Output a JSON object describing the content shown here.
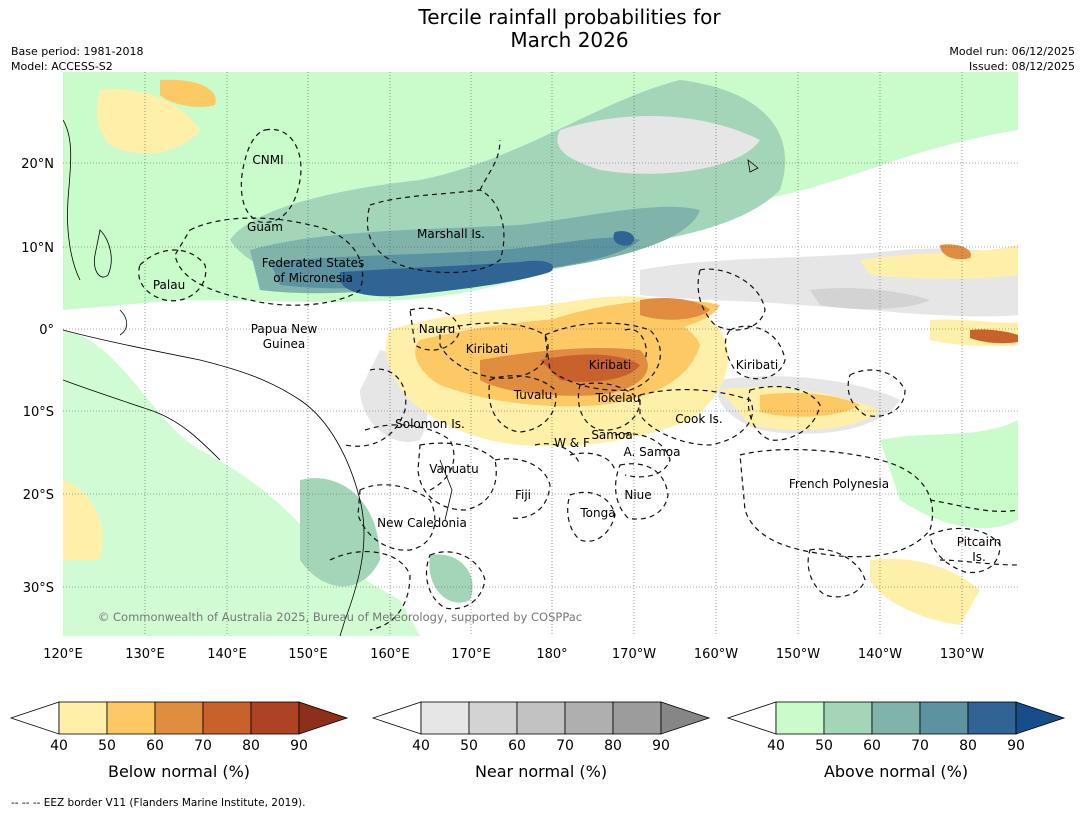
{
  "title": {
    "line1": "Tercile rainfall probabilities for",
    "line2": "March 2026"
  },
  "meta": {
    "base_period": "Base period: 1981-2018",
    "model": "Model: ACCESS-S2",
    "model_run": "Model run: 06/12/2025",
    "issued": "Issued: 08/12/2025"
  },
  "map": {
    "lat_labels": [
      "20°N",
      "10°N",
      "0°",
      "10°S",
      "20°S",
      "30°S"
    ],
    "lon_labels": [
      "120°E",
      "130°E",
      "140°E",
      "150°E",
      "160°E",
      "170°E",
      "180°",
      "170°W",
      "160°W",
      "150°W",
      "140°W",
      "130°W"
    ],
    "regions": [
      "CNMI",
      "Guam",
      "Marshall Is.",
      "Federated States",
      "of Micronesia",
      "Palau",
      "Papua New",
      "Guinea",
      "Nauru",
      "Kiribati",
      "Kiribati",
      "Kiribati",
      "Tuvalu",
      "Tokelau",
      "Cook Is.",
      "Solomon Is.",
      "W & F",
      "Samoa",
      "A. Samoa",
      "Vanuatu",
      "Fiji",
      "Niue",
      "Tonga",
      "French Polynesia",
      "New Caledonia",
      "Pitcairn",
      "Is."
    ],
    "copyright": "© Commonwealth of Australia 2025, Bureau of Meteorology, supported by COSPPac"
  },
  "colorbars": [
    {
      "label": "Below normal (%)",
      "ticks": [
        "40",
        "50",
        "60",
        "70",
        "80",
        "90"
      ],
      "colors": [
        "#fef0a8",
        "#fdc964",
        "#e08d40",
        "#c9612d",
        "#ad4324",
        "#8e2f1c"
      ]
    },
    {
      "label": "Near normal (%)",
      "ticks": [
        "40",
        "50",
        "60",
        "70",
        "80",
        "90"
      ],
      "colors": [
        "#e6e6e6",
        "#d3d3d3",
        "#c2c2c2",
        "#afafaf",
        "#9c9c9c",
        "#868686"
      ]
    },
    {
      "label": "Above normal (%)",
      "ticks": [
        "40",
        "50",
        "60",
        "70",
        "80",
        "90"
      ],
      "colors": [
        "#c9fbcb",
        "#a3d6b9",
        "#80b4ab",
        "#5b93a0",
        "#2f6494",
        "#164d8a"
      ]
    }
  ],
  "footnote": "--  --  -- EEZ border V11 (Flanders Marine Institute, 2019)."
}
